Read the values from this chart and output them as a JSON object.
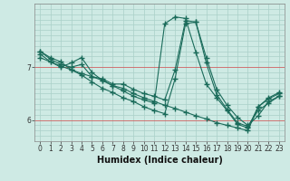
{
  "xlabel": "Humidex (Indice chaleur)",
  "ylabel": "",
  "background_color": "#ceeae4",
  "grid_color": "#aad0c8",
  "line_color": "#1a6b5a",
  "series": [
    [
      7.3,
      7.15,
      7.05,
      7.0,
      7.05,
      6.82,
      6.75,
      6.65,
      6.6,
      6.5,
      6.42,
      6.35,
      6.28,
      6.22,
      6.15,
      6.08,
      6.02,
      5.95,
      5.9,
      5.85,
      5.8,
      6.25,
      6.42,
      6.52
    ],
    [
      7.25,
      7.1,
      7.0,
      7.08,
      7.18,
      6.9,
      6.75,
      6.65,
      6.55,
      6.45,
      6.38,
      6.32,
      7.82,
      7.95,
      7.92,
      7.28,
      6.68,
      6.42,
      6.18,
      5.92,
      5.85,
      6.25,
      6.4,
      6.5
    ],
    [
      7.18,
      7.1,
      7.02,
      6.95,
      6.88,
      6.82,
      6.78,
      6.68,
      6.68,
      6.58,
      6.5,
      6.45,
      6.38,
      6.95,
      7.88,
      7.85,
      7.18,
      6.58,
      6.28,
      6.05,
      5.9,
      6.08,
      6.35,
      6.45
    ],
    [
      7.3,
      7.18,
      7.1,
      6.95,
      6.85,
      6.72,
      6.6,
      6.52,
      6.42,
      6.35,
      6.25,
      6.18,
      6.12,
      6.78,
      7.82,
      7.85,
      7.08,
      6.48,
      6.2,
      5.95,
      5.88,
      6.18,
      6.32,
      6.45
    ]
  ],
  "xlim": [
    -0.5,
    23.5
  ],
  "ylim": [
    5.6,
    8.2
  ],
  "ytick_positions": [
    6.0,
    7.0
  ],
  "ytick_labels": [
    "6",
    "7"
  ],
  "xticks": [
    0,
    1,
    2,
    3,
    4,
    5,
    6,
    7,
    8,
    9,
    10,
    11,
    12,
    13,
    14,
    15,
    16,
    17,
    18,
    19,
    20,
    21,
    22,
    23
  ],
  "hgrid_step": 0.1,
  "red_hlines": [
    6.0,
    7.0
  ],
  "marker": "+",
  "markersize": 4,
  "markeredgewidth": 1.0,
  "linewidth": 0.8,
  "xlabel_fontsize": 7,
  "tick_fontsize": 5.5
}
